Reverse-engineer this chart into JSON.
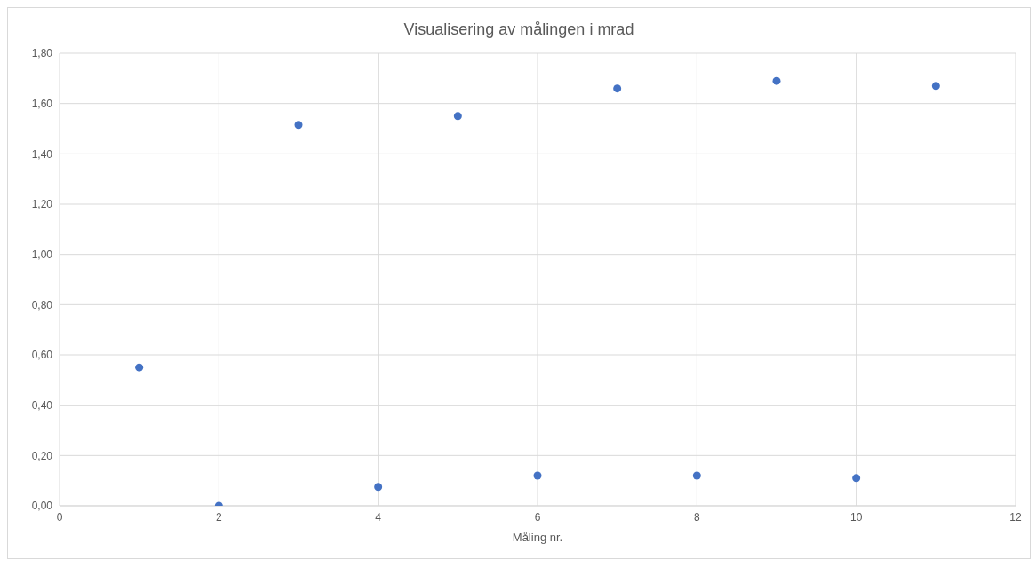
{
  "chart_data": {
    "type": "scatter",
    "title": "Visualisering av målingen i mrad",
    "xlabel": "Måling nr.",
    "x": [
      1,
      2,
      3,
      4,
      5,
      6,
      7,
      8,
      9,
      10,
      11
    ],
    "series": [
      {
        "color": "#4472c4",
        "values": [
          0.55,
          0.0,
          1.515,
          0.075,
          1.55,
          0.12,
          1.66,
          0.12,
          1.69,
          0.11,
          1.67
        ]
      }
    ],
    "xlim": [
      0,
      12
    ],
    "xticks": [
      0,
      2,
      4,
      6,
      8,
      10,
      12
    ],
    "ylim": [
      0,
      1.8
    ],
    "yticks": [
      {
        "value": 0,
        "label": "0,00"
      },
      {
        "value": 0.2,
        "label": "0,20"
      },
      {
        "value": 0.4,
        "label": "0,40"
      },
      {
        "value": 0.6,
        "label": "0,60"
      },
      {
        "value": 0.8,
        "label": "0,80"
      },
      {
        "value": 1.0,
        "label": "1,00"
      },
      {
        "value": 1.2,
        "label": "1,20"
      },
      {
        "value": 1.4,
        "label": "1,40"
      },
      {
        "value": 1.6,
        "label": "1,60"
      },
      {
        "value": 1.8,
        "label": "1,80"
      }
    ],
    "grid": true,
    "marker": "circle"
  }
}
